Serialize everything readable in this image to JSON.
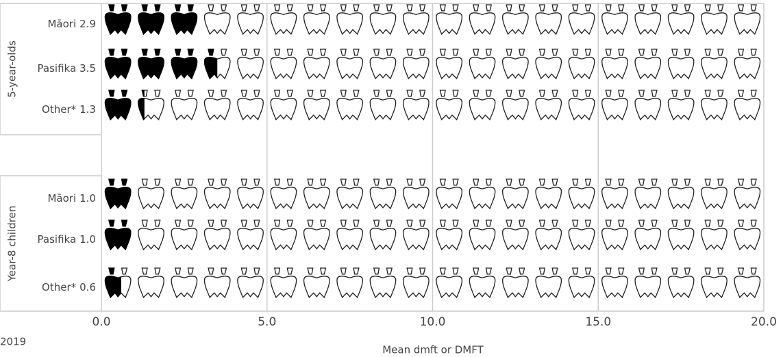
{
  "chart_data": {
    "type": "pictogram",
    "x_label": "Mean dmft or DMFT",
    "caption": "2019",
    "groups": [
      {
        "name": "5-year-olds",
        "categories": [
          "Māori",
          "Pasifika",
          "Other*"
        ],
        "values": [
          2.9,
          3.5,
          1.3
        ],
        "value_labels": [
          "2.9",
          "3.5",
          "1.3"
        ]
      },
      {
        "name": "Year-8 children",
        "categories": [
          "Māori",
          "Pasifika",
          "Other*"
        ],
        "values": [
          1.0,
          1.0,
          0.6
        ],
        "value_labels": [
          "1.0",
          "1.0",
          "0.6"
        ]
      }
    ],
    "xlim": [
      0,
      20
    ],
    "xticks": [
      {
        "value": 0,
        "label": "0.0"
      },
      {
        "value": 5,
        "label": "5.0"
      },
      {
        "value": 10,
        "label": "10.0"
      },
      {
        "value": 15,
        "label": "15.0"
      },
      {
        "value": 20,
        "label": "20.0"
      }
    ],
    "grid": true
  }
}
